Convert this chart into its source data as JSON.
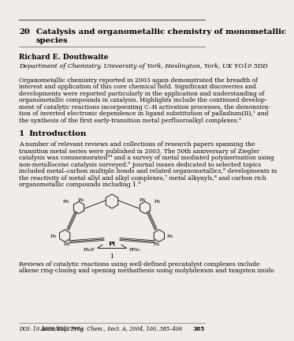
{
  "background_color": "#f0ede8",
  "chapter_number": "20",
  "chapter_title_line1": "Catalysis and organometallic chemistry of monometallic",
  "chapter_title_line2": "species",
  "author": "Richard E. Douthwaite",
  "affiliation": "Department of Chemistry, University of York, Heslington, York, UK YO10 5DD",
  "abstract_lines": [
    "Organometallic chemistry reported in 2003 again demonstrated the breadth of",
    "interest and application of this core chemical field. Significant discoveries and",
    "developments were reported particularly in the application and understanding of",
    "organometallic compounds in catalysis. Highlights include the continued develop-",
    "ment of catalytic reactions incorporating C–H activation processes, the demonstra-",
    "tion of inverted electronic dependence in ligand substitution of palladium(II),¹ and",
    "the synthesis of the first early-transition metal perfluoroalkyl complexes.²"
  ],
  "section_number": "1",
  "section_name": "Introduction",
  "intro_lines": [
    "A number of relevant reviews and collections of research papers spanning the",
    "transition metal series were published in 2003. The 50th anniversary of Ziegler",
    "catalysis was commemorated³⁴ and a survey of metal mediated polymerisation using",
    "non-metallocene catalysis surveyed.⁵ Journal issues dedicated to selected topics",
    "included metal–carbon multiple bonds and related organometallics,⁶ developments in",
    "the reactivity of metal allyl and alkyl complexes,⁷ metal alkynyls,⁸ and carbon rich",
    "organometallic compounds including 1.⁹"
  ],
  "compound_label": "1",
  "bottom_lines": [
    "Reviews of catalytic reactions using well-defined precatalyst complexes include",
    "alkene ring-closing and opening methathesis using molybdenum and tungsten imido"
  ],
  "footer_doi": "DOI: 10.1039/b313797a",
  "footer_journal": "Annu. Rep. Prog. Chem., Sect. A, 2004, 100, 385–406",
  "footer_page": "385",
  "title_fontsize": 7.2,
  "author_fontsize": 6.5,
  "affil_fontsize": 5.8,
  "body_fontsize": 5.5,
  "section_fontsize": 7.5,
  "footer_fontsize": 4.8
}
